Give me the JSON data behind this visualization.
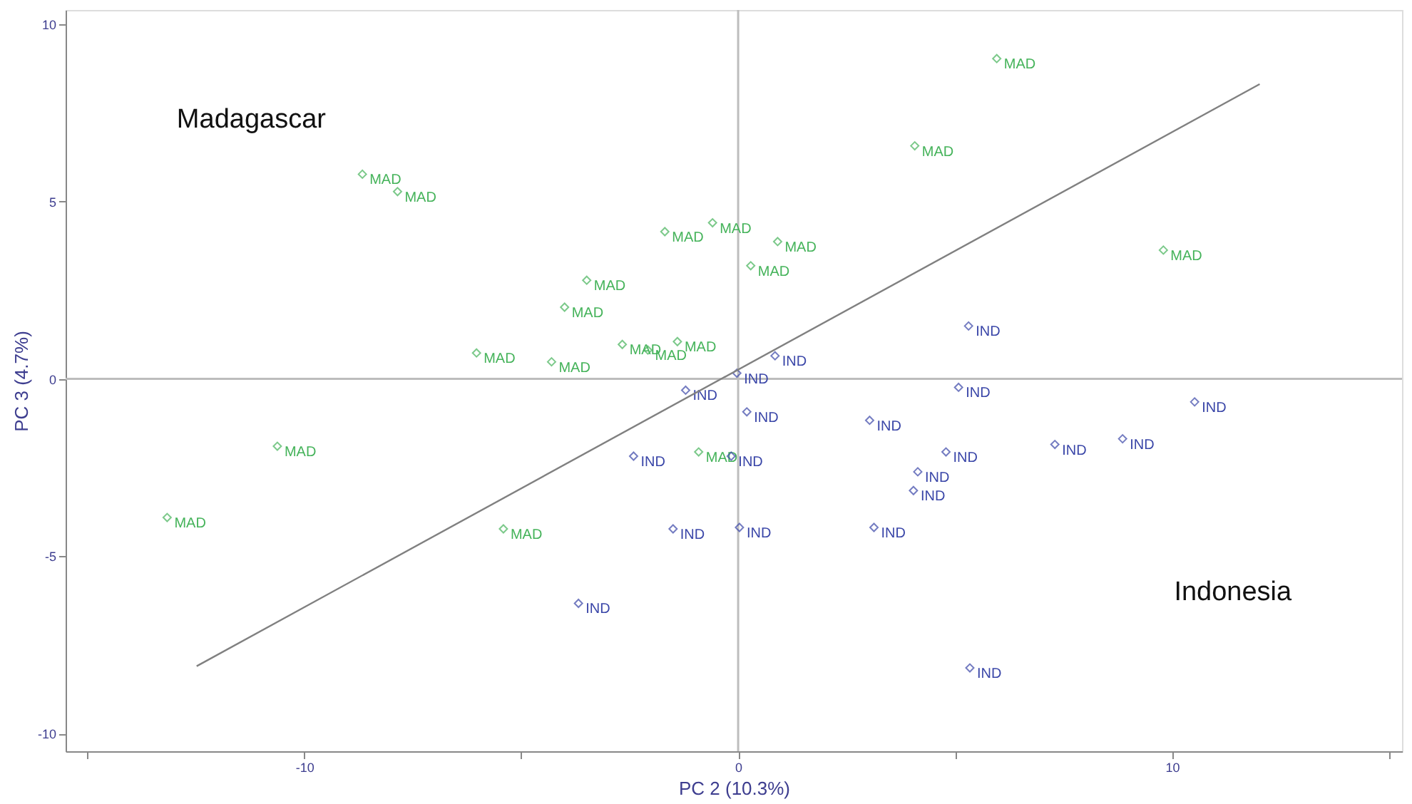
{
  "chart_data": {
    "type": "scatter",
    "xlabel": "PC 2 (10.3%)",
    "ylabel": "PC 3 (4.7%)",
    "xlim": [
      -15.5,
      15.3
    ],
    "ylim": [
      -10.5,
      10.4
    ],
    "xticks": [
      {
        "value": -15,
        "label": null
      },
      -10,
      {
        "value": -5,
        "label": null
      },
      0,
      {
        "value": 5,
        "label": null
      },
      10,
      {
        "value": 15,
        "label": null
      }
    ],
    "yticks": [
      -10,
      -5,
      0,
      5,
      10
    ],
    "grid": false,
    "series": [
      {
        "name": "MAD",
        "color": "#45b35a",
        "marker": "diamond",
        "x": [
          5.96,
          4.07,
          -8.66,
          -7.85,
          -1.69,
          -0.59,
          0.91,
          0.29,
          9.8,
          -3.49,
          -4.0,
          -2.67,
          -2.08,
          -1.4,
          -6.03,
          -4.3,
          -10.62,
          -13.16,
          -5.41,
          -0.91
        ],
        "values": [
          9.03,
          6.57,
          5.77,
          5.28,
          4.15,
          4.4,
          3.87,
          3.19,
          3.63,
          2.78,
          2.02,
          0.97,
          0.81,
          1.05,
          0.73,
          0.48,
          -1.9,
          -3.91,
          -4.23,
          -2.06
        ]
      },
      {
        "name": "IND",
        "color": "#3a46a8",
        "marker": "diamond",
        "x": [
          -0.03,
          0.85,
          5.31,
          -1.21,
          0.2,
          5.08,
          10.52,
          3.03,
          -2.41,
          -0.16,
          4.79,
          7.3,
          8.86,
          4.14,
          4.04,
          -1.5,
          0.03,
          3.13,
          -3.68,
          5.34
        ],
        "values": [
          0.16,
          0.65,
          1.49,
          -0.32,
          -0.93,
          -0.24,
          -0.65,
          -1.17,
          -2.18,
          -2.18,
          -2.06,
          -1.85,
          -1.69,
          -2.62,
          -3.15,
          -4.23,
          -4.19,
          -4.19,
          -6.33,
          -8.15
        ]
      },
      {
        "type": "line",
        "color": "#808080",
        "marker": "none",
        "x": [
          -12.48,
          12.02
        ],
        "values": [
          -8.1,
          8.31
        ]
      }
    ],
    "ref_lines": [
      {
        "axis": "x",
        "value": 0,
        "color": "#bdbdbd"
      },
      {
        "axis": "y",
        "value": 0,
        "color": "#bdbdbd"
      }
    ],
    "annotations": [
      "Madagascar",
      "Indonesia"
    ]
  }
}
